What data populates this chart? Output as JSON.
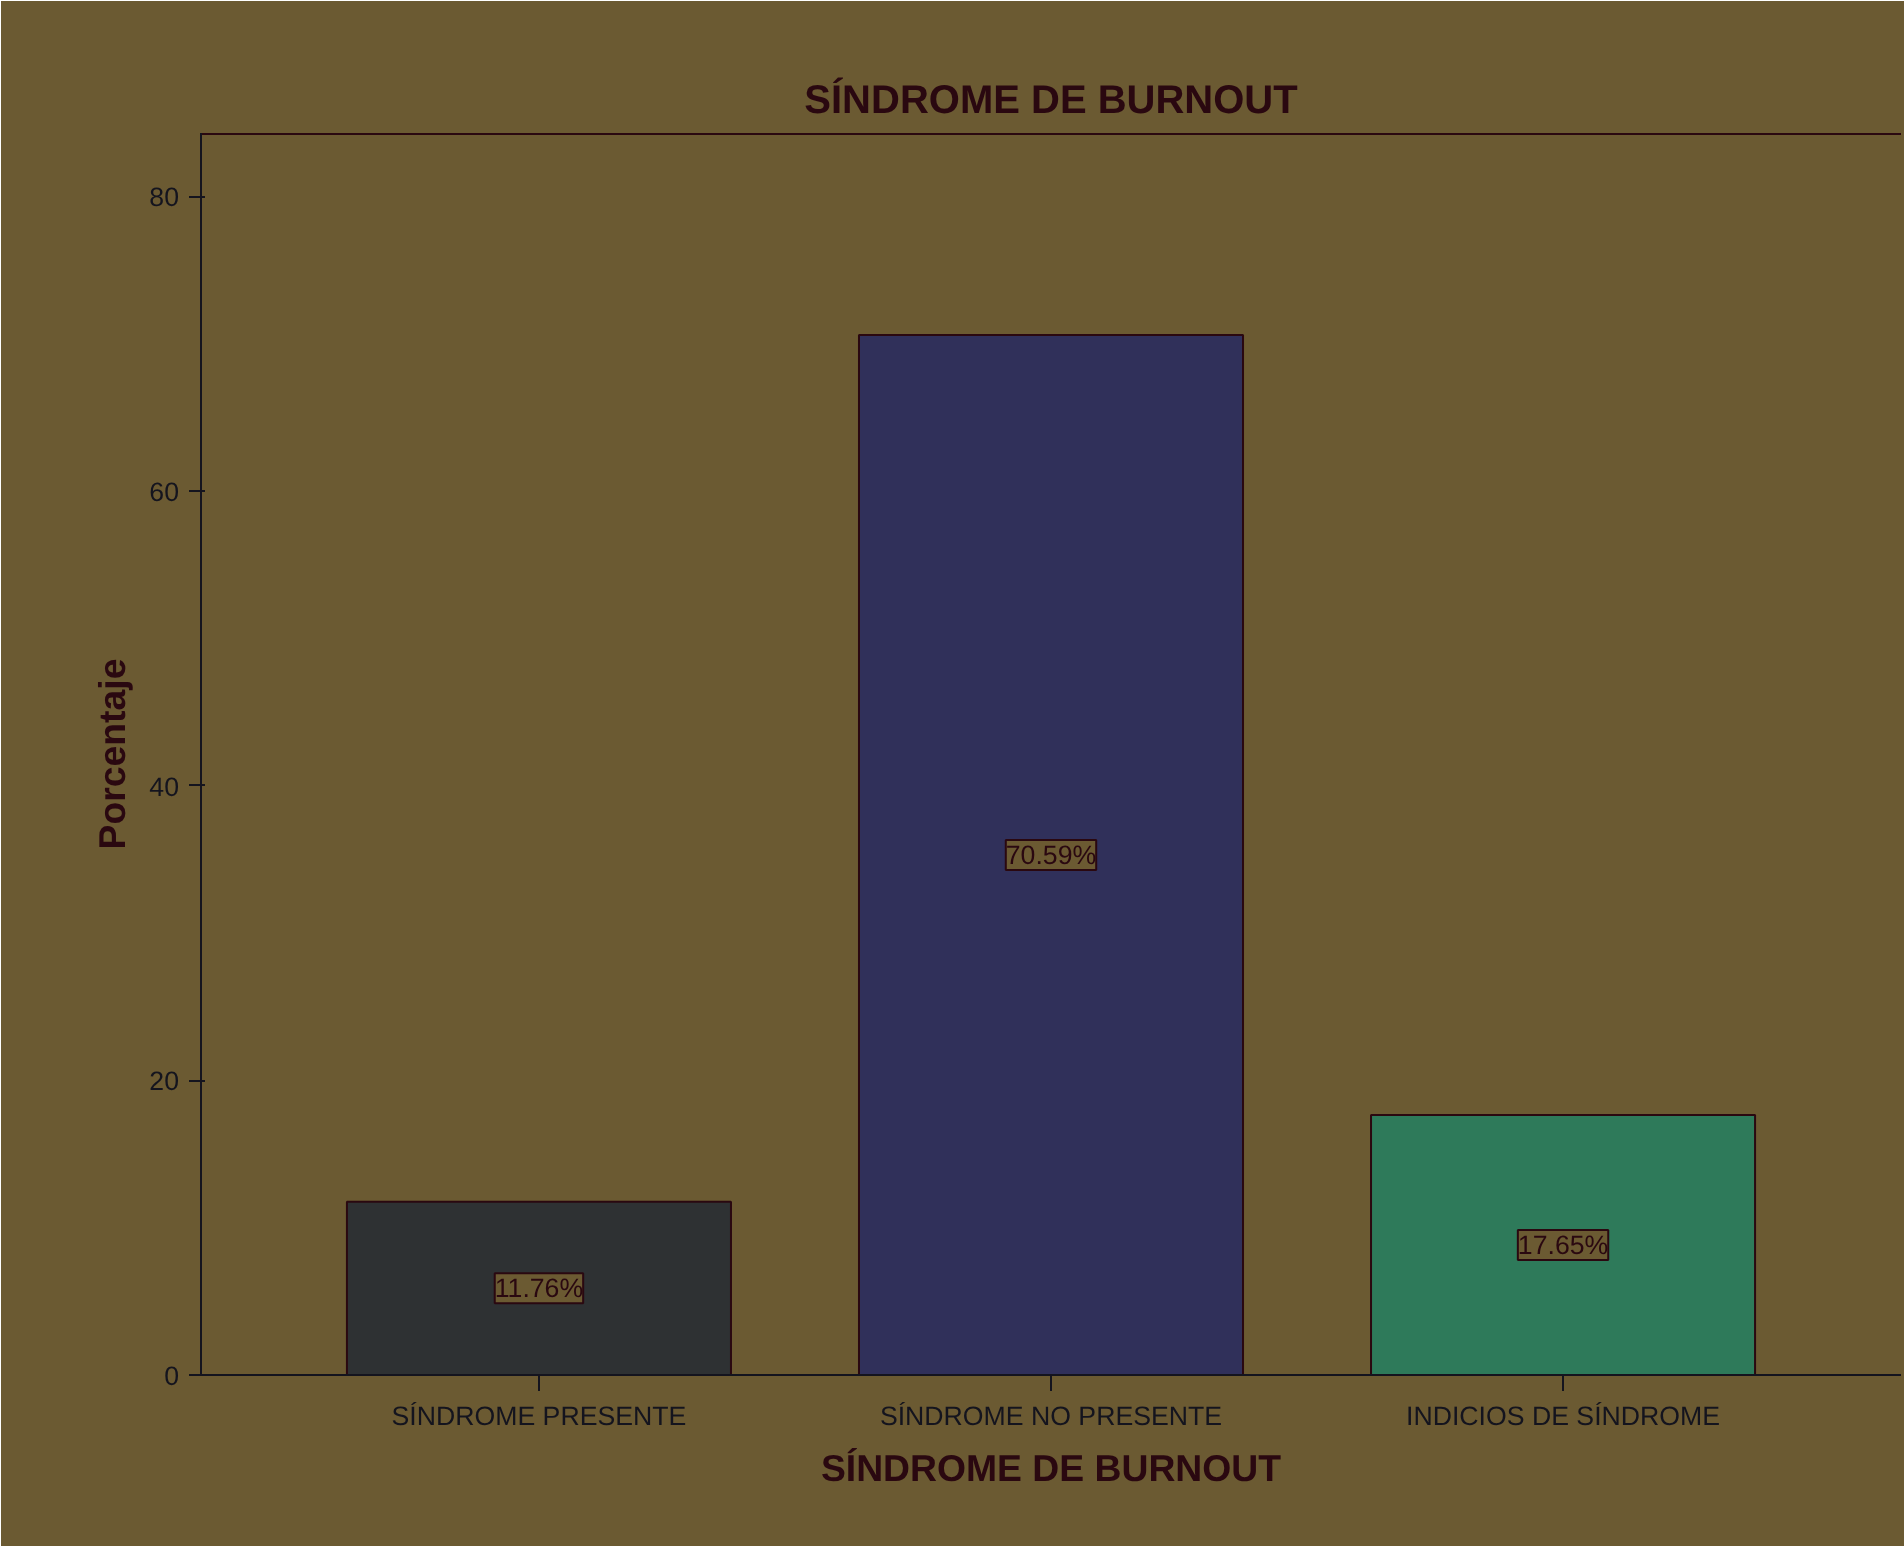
{
  "chart_data": {
    "type": "bar",
    "title": "SÍNDROME DE BURNOUT",
    "xlabel": "SÍNDROME DE BURNOUT",
    "ylabel": "Porcentaje",
    "categories": [
      "SÍNDROME PRESENTE",
      "SÍNDROME NO PRESENTE",
      "INDICIOS DE SÍNDROME"
    ],
    "values": [
      11.76,
      70.59,
      17.65
    ],
    "colors": [
      "#2e3133",
      "#30305a",
      "#2e7a5a"
    ],
    "value_labels": [
      "11.76%",
      "70.59%",
      "17.65%"
    ],
    "ylim": [
      0,
      84.3
    ],
    "yticks": [
      0,
      20,
      40,
      60,
      80
    ],
    "grid": false
  }
}
